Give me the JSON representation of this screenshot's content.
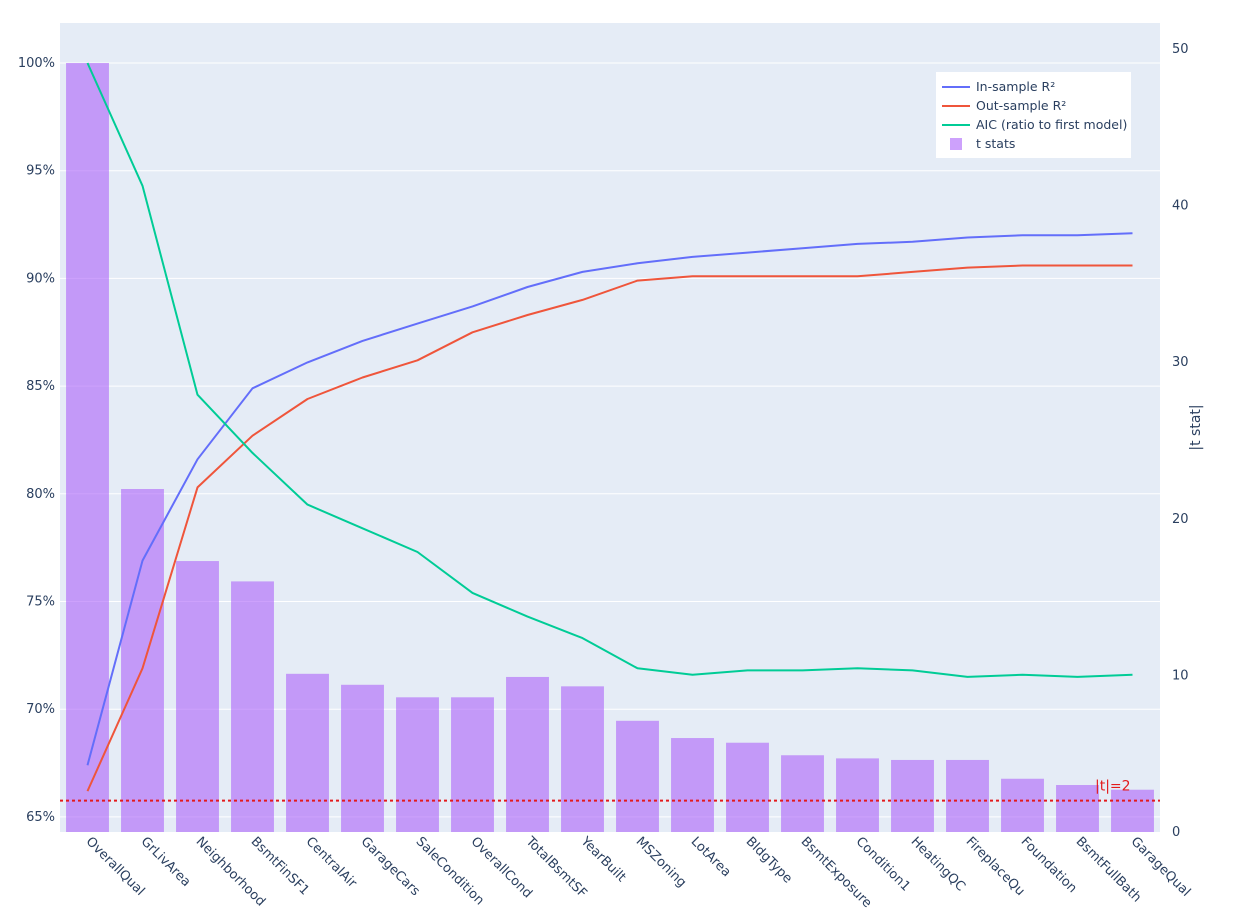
{
  "chart_data": {
    "type": "bar",
    "categories": [
      "OverallQual",
      "GrLivArea",
      "Neighborhood",
      "BsmtFinSF1",
      "CentralAir",
      "GarageCars",
      "SaleCondition",
      "OverallCond",
      "TotalBsmtSF",
      "YearBuilt",
      "MSZoning",
      "LotArea",
      "BldgType",
      "BsmtExposure",
      "Condition1",
      "HeatingQC",
      "FireplaceQu",
      "Foundation",
      "BsmtFullBath",
      "GarageQual"
    ],
    "series": [
      {
        "name": "In-sample R²",
        "type": "line",
        "axis": "left",
        "color": "#636efa",
        "values": [
          0.674,
          0.769,
          0.816,
          0.849,
          0.861,
          0.871,
          0.879,
          0.887,
          0.896,
          0.903,
          0.907,
          0.91,
          0.912,
          0.914,
          0.916,
          0.917,
          0.919,
          0.92,
          0.92,
          0.921
        ]
      },
      {
        "name": "Out-sample R²",
        "type": "line",
        "axis": "left",
        "color": "#ef553b",
        "values": [
          0.662,
          0.719,
          0.803,
          0.827,
          0.844,
          0.854,
          0.862,
          0.875,
          0.883,
          0.89,
          0.899,
          0.901,
          0.901,
          0.901,
          0.901,
          0.903,
          0.905,
          0.906,
          0.906,
          0.906
        ]
      },
      {
        "name": "AIC (ratio to first model)",
        "type": "line",
        "axis": "left",
        "color": "#00cc96",
        "values": [
          1.0,
          0.943,
          0.846,
          0.819,
          0.795,
          0.784,
          0.773,
          0.754,
          0.743,
          0.733,
          0.719,
          0.716,
          0.718,
          0.718,
          0.719,
          0.718,
          0.715,
          0.716,
          0.715,
          0.716
        ]
      },
      {
        "name": "t stats",
        "type": "bar",
        "axis": "right",
        "color": "#ab63fa",
        "values": [
          49.1,
          21.9,
          17.3,
          16.0,
          10.1,
          9.4,
          8.6,
          8.6,
          9.9,
          9.3,
          7.1,
          6.0,
          5.7,
          4.9,
          4.7,
          4.6,
          4.6,
          3.4,
          3.0,
          2.7
        ]
      }
    ],
    "y_left": {
      "ticks": [
        "65%",
        "70%",
        "75%",
        "80%",
        "85%",
        "90%",
        "95%",
        "100%"
      ],
      "ylim": [
        0.643,
        1.0
      ]
    },
    "y_right": {
      "label": "|t stat|",
      "ticks": [
        "0",
        "10",
        "20",
        "30",
        "40",
        "50"
      ],
      "ylim": [
        0,
        49.1
      ]
    },
    "threshold": {
      "value": 2,
      "label": "|t|=2",
      "color": "#e31a1c"
    },
    "legend": {
      "position": "top-right"
    },
    "grid": true,
    "plot_bg": "#e5ecf6"
  }
}
